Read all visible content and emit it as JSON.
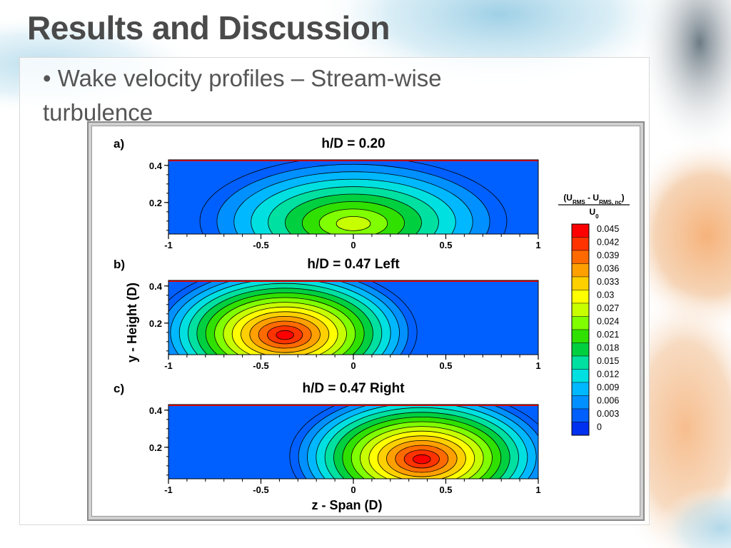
{
  "slide": {
    "title": "Results and Discussion",
    "bullet": "• Wake velocity profiles – Stream-wise turbulence"
  },
  "chart_data": {
    "type": "heatmap",
    "xlabel": "z - Span (D)",
    "ylabel": "y - Height (D)",
    "xlim": [
      -1,
      1
    ],
    "ylim": [
      0.03,
      0.43
    ],
    "x_ticks": [
      "-1",
      "-0.5",
      "0",
      "0.5",
      "1"
    ],
    "x_tick_values": [
      -1,
      -0.5,
      0,
      0.5,
      1
    ],
    "y_ticks": [
      "0.4",
      "0.2"
    ],
    "y_tick_values": [
      0.4,
      0.2
    ],
    "colorbar": {
      "title_line1": "(U",
      "title_sub1": "RMS",
      "title_mid": " - U",
      "title_sub2": "RMS, nc",
      "title_end": ")",
      "title_line2": "U",
      "title_sub3": "0",
      "levels": [
        "0.045",
        "0.042",
        "0.039",
        "0.036",
        "0.033",
        "0.03",
        "0.027",
        "0.024",
        "0.021",
        "0.018",
        "0.015",
        "0.012",
        "0.009",
        "0.006",
        "0.003",
        "0"
      ],
      "colors": [
        "#ff0000",
        "#ff3300",
        "#ff6a00",
        "#ffa000",
        "#ffd000",
        "#ffff00",
        "#c8ff00",
        "#80ff00",
        "#30e000",
        "#00d040",
        "#00e0a0",
        "#00e0e0",
        "#00b8ff",
        "#0090ff",
        "#0060ff",
        "#0030f0"
      ]
    },
    "panels": [
      {
        "label": "a)",
        "title": "h/D = 0.20",
        "peak_z": 0.0,
        "peak_y": 0.1,
        "peak_level": 0.027
      },
      {
        "label": "b)",
        "title": "h/D = 0.47 Left",
        "peak_z": -0.37,
        "peak_y": 0.15,
        "peak_level": 0.045
      },
      {
        "label": "c)",
        "title": "h/D = 0.47 Right",
        "peak_z": 0.37,
        "peak_y": 0.15,
        "peak_level": 0.045
      }
    ]
  }
}
